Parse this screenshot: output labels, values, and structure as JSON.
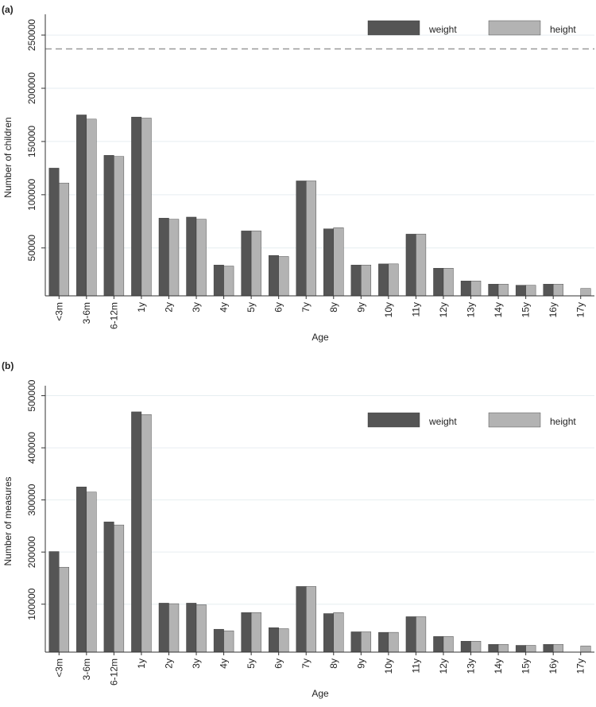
{
  "chart_data": [
    {
      "type": "bar",
      "panel_label": "(a)",
      "y_label": "Number of children",
      "x_label": "Age",
      "categories": [
        "<3m",
        "3-6m",
        "6-12m",
        "1y",
        "2y",
        "3y",
        "4y",
        "5y",
        "6y",
        "7y",
        "8y",
        "9y",
        "10y",
        "11y",
        "12y",
        "13y",
        "14y",
        "15y",
        "16y",
        "17y"
      ],
      "series": [
        {
          "name": "weight",
          "color": "#555555",
          "values": [
            125000,
            175000,
            137000,
            173000,
            78000,
            79000,
            34000,
            66000,
            43000,
            113000,
            68000,
            34000,
            35000,
            63000,
            31000,
            19000,
            16000,
            15000,
            16000,
            null
          ]
        },
        {
          "name": "height",
          "color": "#b3b3b3",
          "values": [
            111000,
            171000,
            136000,
            172000,
            77000,
            77000,
            33000,
            66000,
            42000,
            113000,
            69000,
            34000,
            35000,
            63000,
            31000,
            19000,
            16000,
            15000,
            16000,
            12000
          ]
        }
      ],
      "ylim": [
        5000,
        265000
      ],
      "yticks": [
        50000,
        100000,
        150000,
        200000,
        250000
      ],
      "reference_line": 237000,
      "grid": true,
      "legend": "top-right"
    },
    {
      "type": "bar",
      "panel_label": "(b)",
      "y_label": "Number of measures",
      "x_label": "Age",
      "categories": [
        "<3m",
        "3-6m",
        "6-12m",
        "1y",
        "2y",
        "3y",
        "4y",
        "5y",
        "6y",
        "7y",
        "8y",
        "9y",
        "10y",
        "11y",
        "12y",
        "13y",
        "14y",
        "15y",
        "16y",
        "17y"
      ],
      "series": [
        {
          "name": "weight",
          "color": "#555555",
          "values": [
            201000,
            325000,
            258000,
            469000,
            102000,
            102000,
            52000,
            84000,
            55000,
            134000,
            82000,
            47000,
            46000,
            76000,
            38000,
            29000,
            23000,
            21000,
            23000,
            null
          ]
        },
        {
          "name": "height",
          "color": "#b3b3b3",
          "values": [
            171000,
            315000,
            252000,
            464000,
            101000,
            99000,
            49000,
            84000,
            53000,
            134000,
            84000,
            47000,
            46000,
            76000,
            38000,
            29000,
            23000,
            21000,
            23000,
            20000
          ]
        }
      ],
      "ylim": [
        8000,
        510000
      ],
      "yticks": [
        100000,
        200000,
        300000,
        400000,
        500000
      ],
      "grid": true,
      "legend": "top-right"
    }
  ]
}
